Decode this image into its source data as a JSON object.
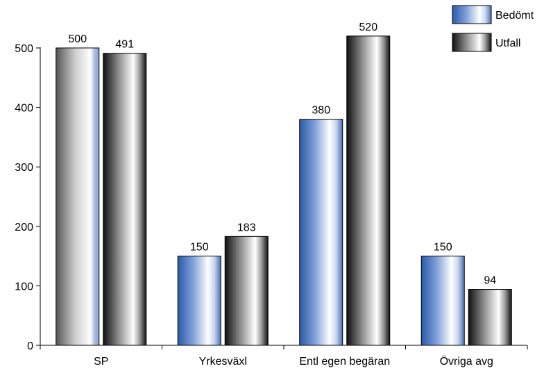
{
  "chart_data": {
    "type": "bar",
    "title": "",
    "xlabel": "",
    "ylabel": "",
    "categories": [
      "SP",
      "Yrkesväxl",
      "Entl egen begäran",
      "Övriga avg"
    ],
    "series": [
      {
        "name": "Bedömt",
        "values": [
          500,
          150,
          380,
          150
        ],
        "color": "#3a6fc4"
      },
      {
        "name": "Utfall",
        "values": [
          491,
          183,
          520,
          94
        ],
        "color": "#202020"
      }
    ],
    "ylim": [
      0,
      500
    ],
    "yticks": [
      0,
      100,
      200,
      300,
      400,
      500
    ],
    "grid": false,
    "legend": "top-right"
  }
}
